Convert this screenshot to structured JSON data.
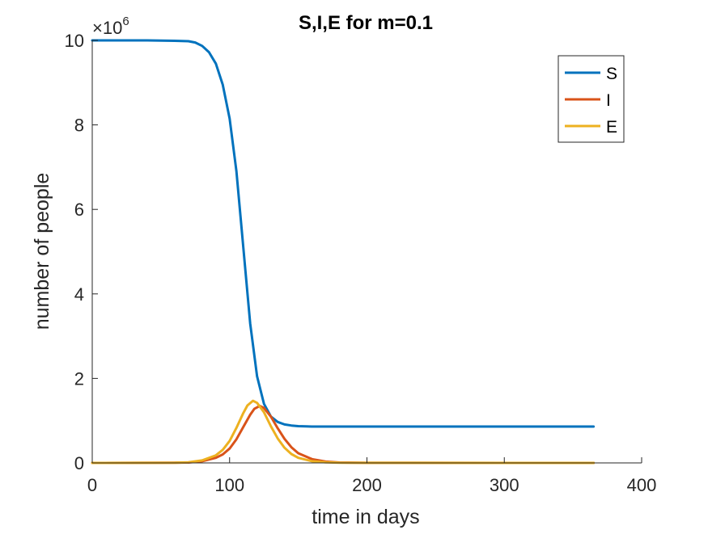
{
  "chart_data": {
    "type": "line",
    "title": "S,I,E for m=0.1",
    "xlabel": "time in days",
    "ylabel": "number of people",
    "y_exponent_label": "×10",
    "y_exponent_power": "6",
    "xlim": [
      0,
      400
    ],
    "ylim": [
      0,
      10
    ],
    "x_ticks": [
      0,
      100,
      200,
      300,
      400
    ],
    "x_tick_labels": [
      "0",
      "100",
      "200",
      "300",
      "400"
    ],
    "y_ticks": [
      0,
      2,
      4,
      6,
      8,
      10
    ],
    "y_tick_labels": [
      "0",
      "2",
      "4",
      "6",
      "8",
      "10"
    ],
    "grid": false,
    "legend_position": "top-right",
    "series": [
      {
        "name": "S",
        "color": "#0072BD",
        "x": [
          0,
          40,
          60,
          70,
          75,
          80,
          85,
          90,
          95,
          100,
          105,
          110,
          115,
          120,
          125,
          130,
          135,
          140,
          145,
          150,
          160,
          200,
          300,
          365
        ],
        "y": [
          10.0,
          10.0,
          9.99,
          9.98,
          9.95,
          9.87,
          9.72,
          9.45,
          8.95,
          8.15,
          6.9,
          5.1,
          3.3,
          2.05,
          1.4,
          1.1,
          0.97,
          0.91,
          0.885,
          0.87,
          0.86,
          0.86,
          0.86,
          0.86
        ]
      },
      {
        "name": "I",
        "color": "#D95319",
        "x": [
          0,
          60,
          70,
          80,
          90,
          95,
          100,
          105,
          110,
          115,
          118,
          122,
          125,
          130,
          135,
          140,
          145,
          150,
          160,
          170,
          180,
          200,
          365
        ],
        "y": [
          0,
          0.003,
          0.01,
          0.04,
          0.12,
          0.2,
          0.34,
          0.56,
          0.85,
          1.14,
          1.28,
          1.35,
          1.3,
          1.1,
          0.82,
          0.57,
          0.37,
          0.23,
          0.09,
          0.03,
          0.01,
          0.001,
          0
        ]
      },
      {
        "name": "E",
        "color": "#EDB120",
        "x": [
          0,
          60,
          70,
          80,
          90,
          95,
          100,
          105,
          110,
          113,
          117,
          120,
          125,
          130,
          135,
          140,
          145,
          150,
          160,
          170,
          180,
          200,
          365
        ],
        "y": [
          0,
          0.004,
          0.015,
          0.06,
          0.18,
          0.31,
          0.52,
          0.83,
          1.18,
          1.36,
          1.47,
          1.42,
          1.2,
          0.87,
          0.58,
          0.36,
          0.21,
          0.12,
          0.04,
          0.013,
          0.004,
          0.001,
          0
        ]
      }
    ]
  }
}
